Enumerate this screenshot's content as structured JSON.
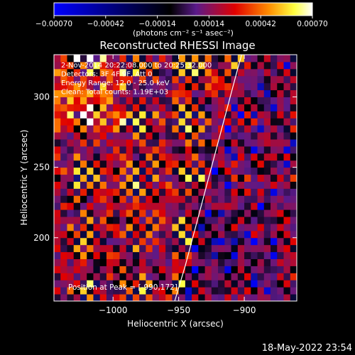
{
  "chart_data": {
    "type": "heatmap",
    "title": "Reconstructed RHESSI Image",
    "xlabel": "Heliocentric X (arcsec)",
    "ylabel": "Heliocentric Y (arcsec)",
    "xlim": [
      -1045,
      -860
    ],
    "ylim": [
      155,
      330
    ],
    "xticks": [
      -1000,
      -950,
      -900
    ],
    "xtick_labels": [
      "−1000",
      "−950",
      "−900"
    ],
    "yticks": [
      200,
      250,
      300
    ],
    "ytick_labels": [
      "200",
      "250",
      "300"
    ],
    "colorbar": {
      "range": [
        -0.0007,
        0.0007
      ],
      "ticks": [
        -0.0007,
        -0.00042,
        -0.00014,
        0.00014,
        0.00042,
        0.0007
      ],
      "tick_labels": [
        "−0.00070",
        "−0.00042",
        "−0.00014",
        "0.00014",
        "0.00042",
        "0.00070"
      ],
      "unit_label": "(photons cm⁻² s⁻¹ asec⁻²)",
      "colors": [
        "#0000ff",
        "#000000",
        "#7a1fa0",
        "#e00000",
        "#ff8c00",
        "#ffff40",
        "#ffffff"
      ]
    },
    "annotations": [
      " 2-Nov-2014 20:22:08.000 to 20:25:32.000",
      "Detectors: 3F 4F 9F, Att 0",
      "Energy Range: 12.0 - 25.0 keV",
      "Clean:   Total counts: 1.19E+03"
    ],
    "peak_text": "Position at Peak = [-990,172]",
    "limb_curve": [
      [
        -953,
        155
      ],
      [
        -945,
        180
      ],
      [
        -935,
        215
      ],
      [
        -925,
        250
      ],
      [
        -915,
        285
      ],
      [
        -905,
        320
      ],
      [
        -902,
        330
      ]
    ],
    "grid": false
  },
  "footer": {
    "timestamp": "18-May-2022 23:54"
  }
}
